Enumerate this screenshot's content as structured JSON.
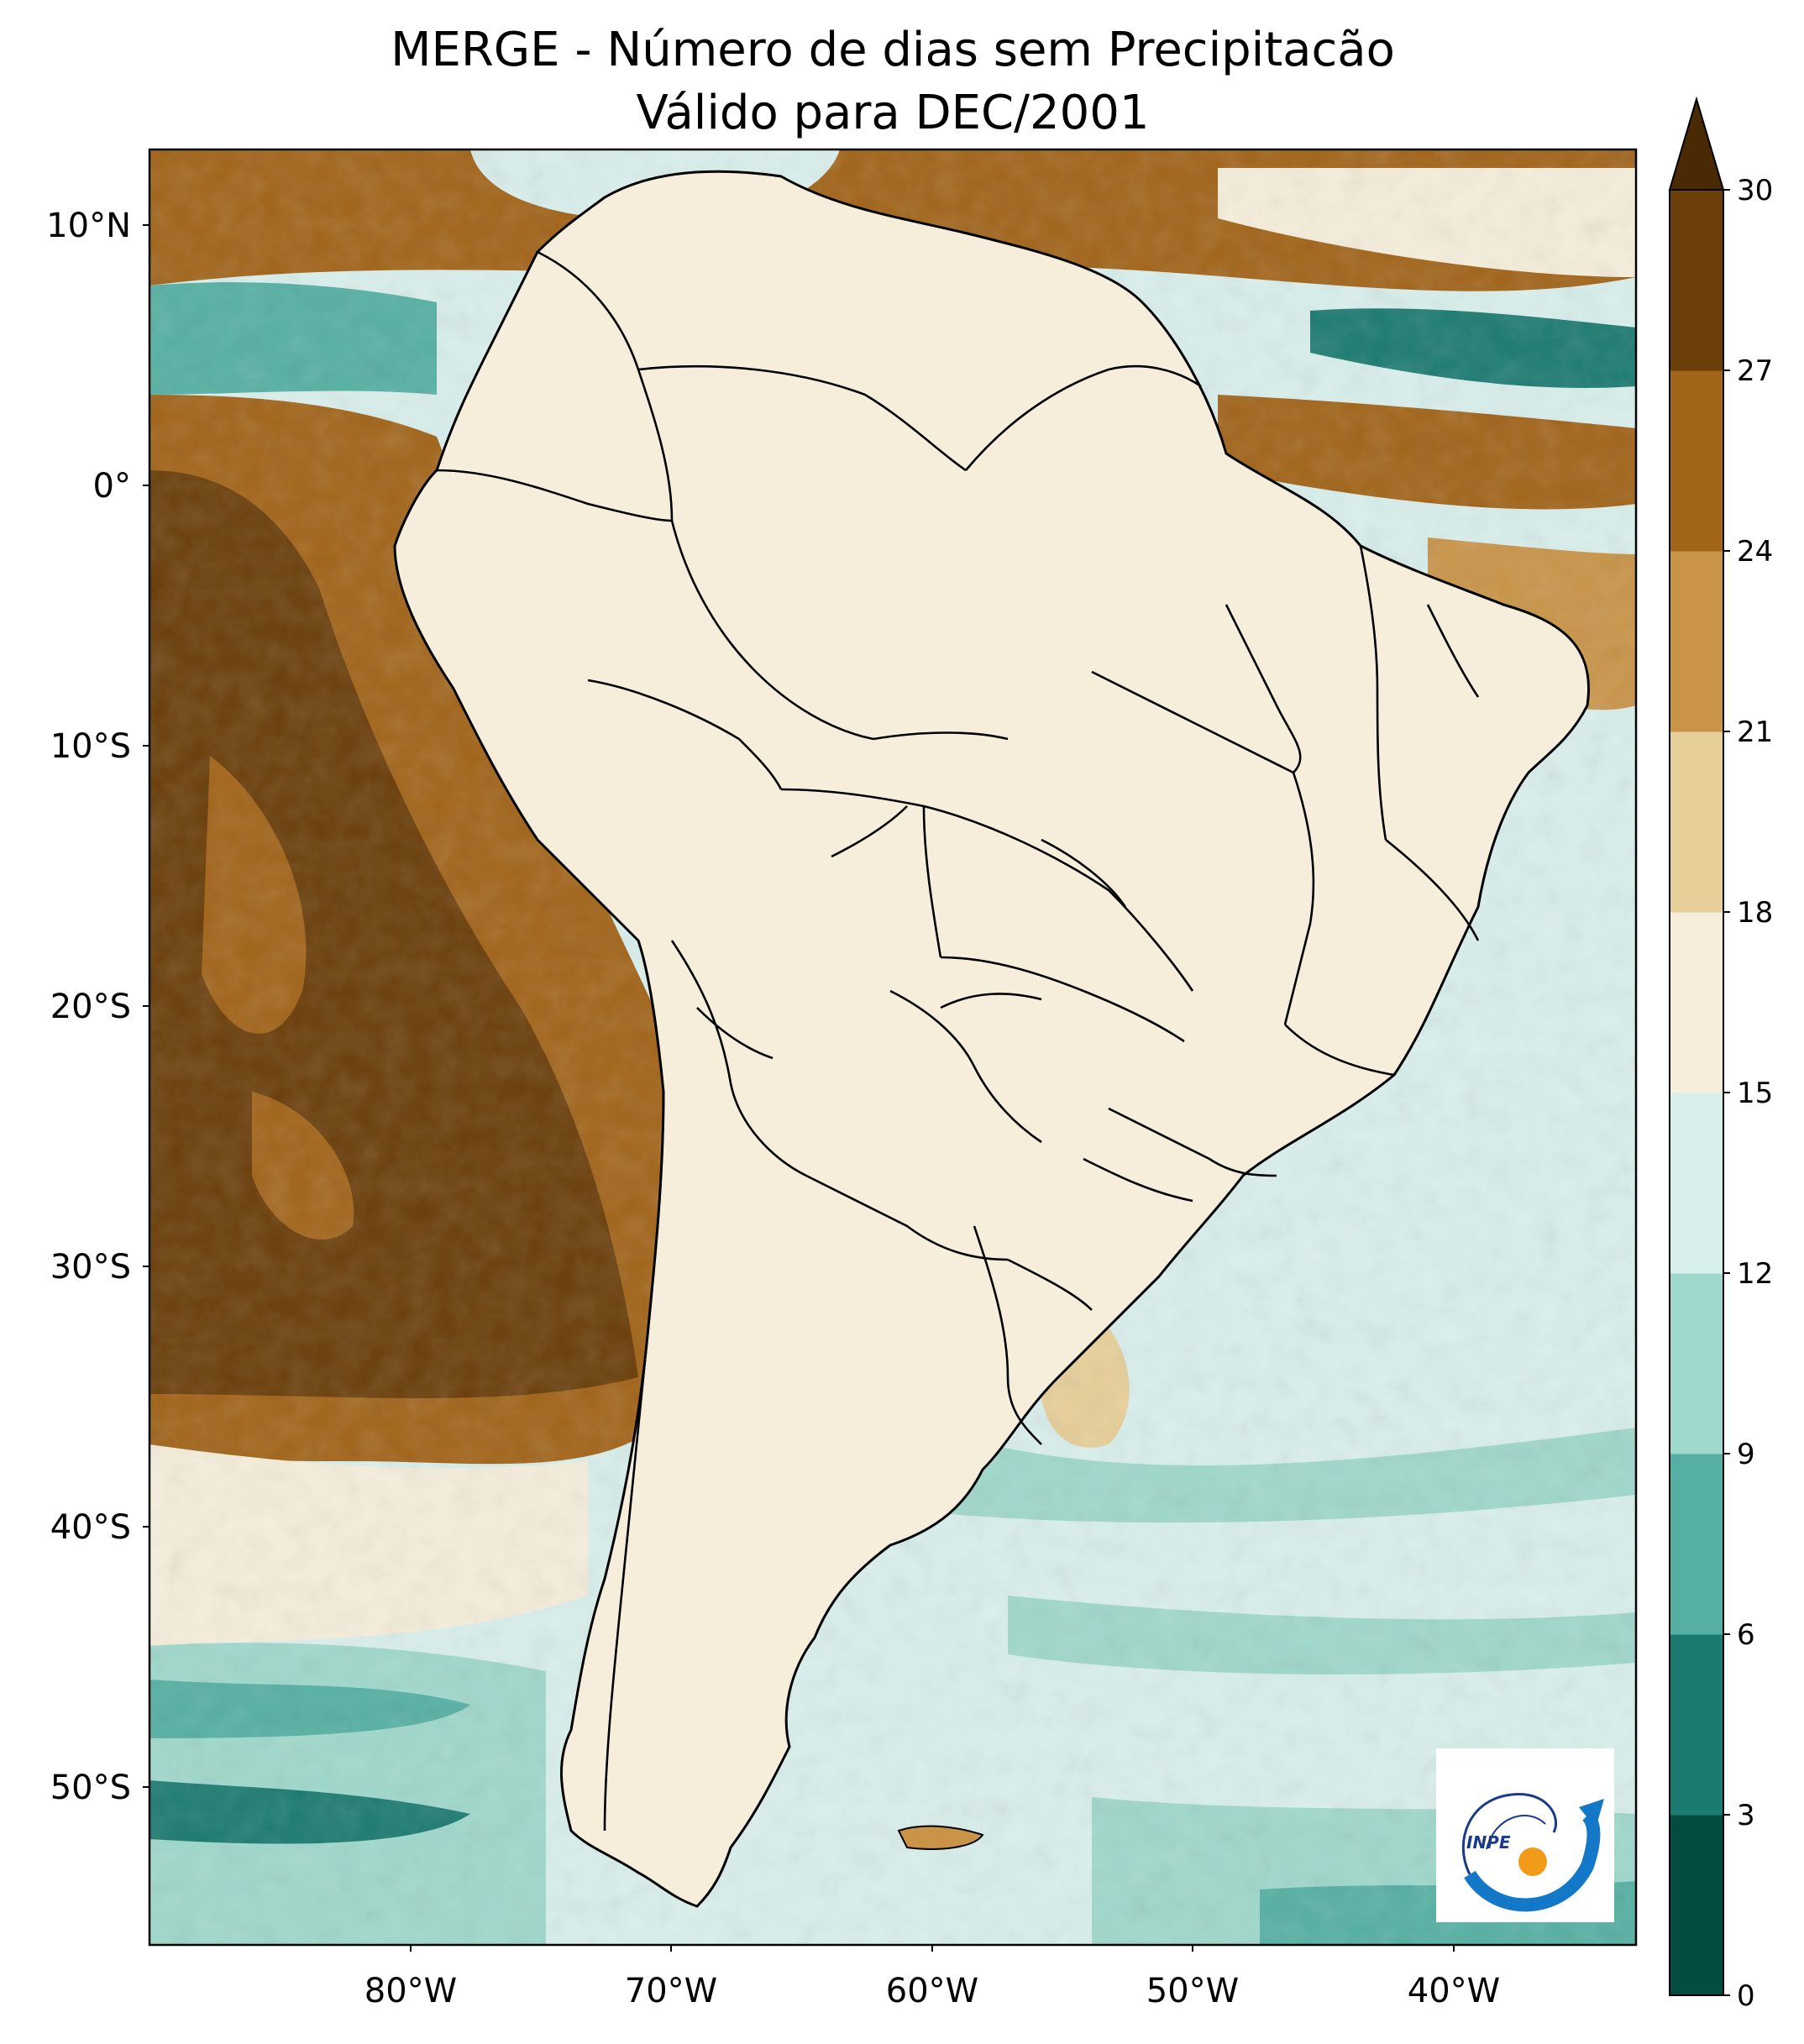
{
  "title": {
    "line1": "MERGE - Número de dias sem Precipitacão",
    "line2": "Válido para DEC/2001"
  },
  "map": {
    "lat_ticks": [
      "10°N",
      "0°",
      "10°S",
      "20°S",
      "30°S",
      "40°S",
      "50°S"
    ],
    "lon_ticks": [
      "80°W",
      "70°W",
      "60°W",
      "50°W",
      "40°W"
    ],
    "lon_range": [
      -90,
      -33
    ],
    "lat_range": [
      -56,
      13
    ],
    "land_colors": {
      "deep_dry": "#6b3e0a",
      "dry": "#a26419",
      "medium": "#c99448",
      "light": "#e7cf99",
      "cream": "#f6eedb",
      "pale": "#d9efec",
      "aqua": "#9fd8cc",
      "teal": "#55b0a3",
      "dark_teal": "#1c7b71",
      "deepest": "#024d40"
    }
  },
  "colorbar": {
    "ticks": [
      "0",
      "3",
      "6",
      "9",
      "12",
      "15",
      "18",
      "21",
      "24",
      "27",
      "30"
    ],
    "colors": [
      "#024d40",
      "#1c7b71",
      "#55b0a3",
      "#9fd8cc",
      "#d9efec",
      "#f6eedb",
      "#e7cf99",
      "#c99448",
      "#a26419",
      "#6b3e0a"
    ],
    "extend_color": "#4a2a05"
  },
  "logo": {
    "text": "INPE"
  }
}
